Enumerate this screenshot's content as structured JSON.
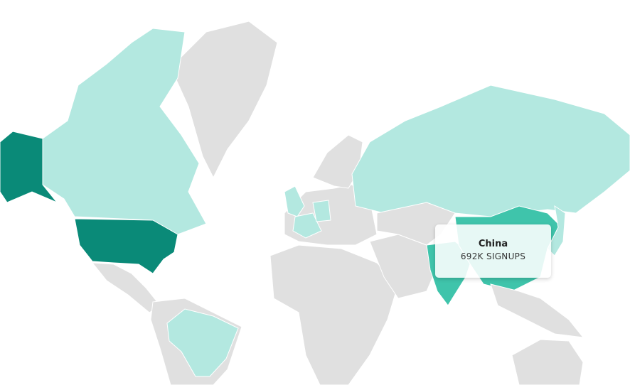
{
  "colors": {
    "none": "#e0e0e0",
    "low": "#b3e8e0",
    "medium": "#3fc4ab",
    "high": "#0a8a78",
    "border": "#ffffff"
  },
  "regions": [
    {
      "name": "Greenland",
      "level": "none"
    },
    {
      "name": "Canada",
      "level": "low"
    },
    {
      "name": "Alaska",
      "level": "high"
    },
    {
      "name": "United States",
      "level": "high"
    },
    {
      "name": "Mexico",
      "level": "none"
    },
    {
      "name": "South America",
      "level": "none"
    },
    {
      "name": "Brazil",
      "level": "low"
    },
    {
      "name": "Europe",
      "level": "none"
    },
    {
      "name": "United Kingdom",
      "level": "low"
    },
    {
      "name": "France",
      "level": "low"
    },
    {
      "name": "Germany",
      "level": "low"
    },
    {
      "name": "Scandinavia",
      "level": "none"
    },
    {
      "name": "Africa",
      "level": "none"
    },
    {
      "name": "Russia",
      "level": "low"
    },
    {
      "name": "Middle East",
      "level": "none"
    },
    {
      "name": "Central Asia",
      "level": "none"
    },
    {
      "name": "India",
      "level": "medium"
    },
    {
      "name": "China",
      "level": "medium"
    },
    {
      "name": "Japan",
      "level": "low"
    },
    {
      "name": "Southeast Asia",
      "level": "none"
    },
    {
      "name": "Australia",
      "level": "none"
    }
  ],
  "tooltip": {
    "title": "China",
    "value": "692K SIGNUPS"
  }
}
